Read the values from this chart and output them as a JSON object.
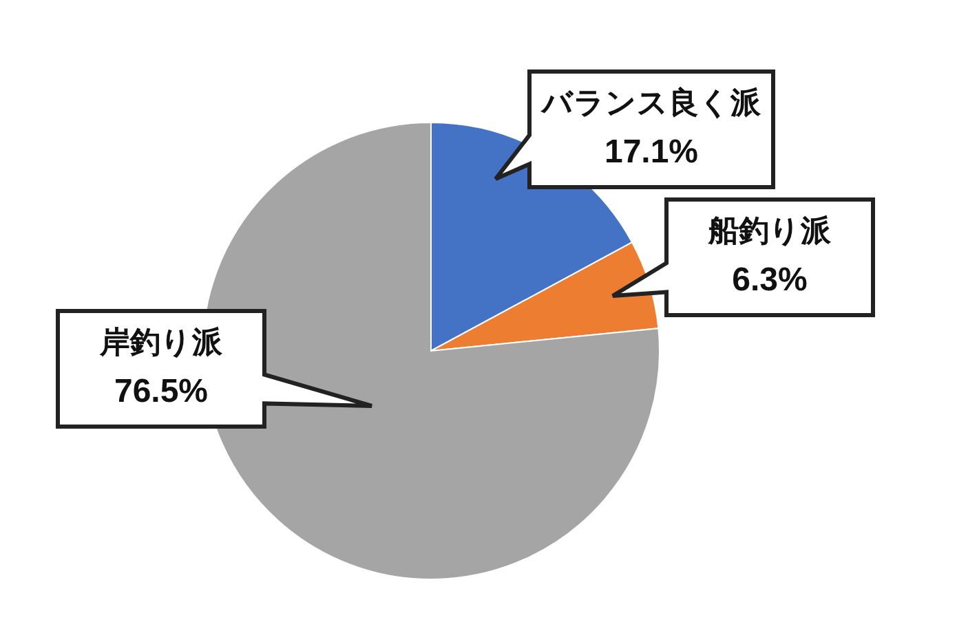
{
  "chart_data": {
    "type": "pie",
    "categories": [
      "バランス良く派",
      "船釣り派",
      "岸釣り派"
    ],
    "values": [
      17.1,
      6.3,
      76.5
    ],
    "colors": [
      "#4472c4",
      "#ed7d31",
      "#a5a5a5"
    ],
    "value_labels": [
      "17.1%",
      "6.3%",
      "76.5%"
    ]
  }
}
